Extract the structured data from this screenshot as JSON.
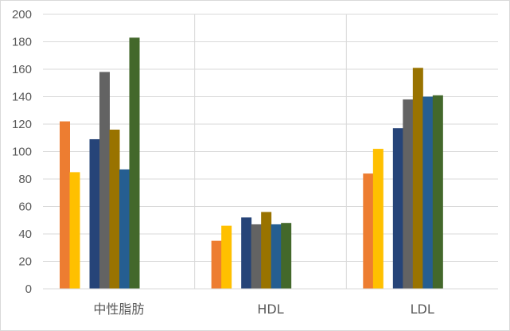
{
  "chart_data": {
    "type": "bar",
    "title": "",
    "xlabel": "",
    "ylabel": "",
    "ylim": [
      0,
      200
    ],
    "yticks": [
      0,
      20,
      40,
      60,
      80,
      100,
      120,
      140,
      160,
      180,
      200
    ],
    "grid": true,
    "legend": "none",
    "categories": [
      "中性脂肪",
      "HDL",
      "LDL"
    ],
    "series": [
      {
        "color": "#ED7D31",
        "values": [
          122,
          35,
          84
        ]
      },
      {
        "color": "#FFC000",
        "values": [
          85,
          46,
          102
        ]
      },
      {
        "color": "#264478",
        "values": [
          109,
          52,
          117
        ]
      },
      {
        "color": "#636363",
        "values": [
          158,
          47,
          138
        ]
      },
      {
        "color": "#997300",
        "values": [
          116,
          56,
          161
        ]
      },
      {
        "color": "#255E91",
        "values": [
          87,
          47,
          140
        ]
      },
      {
        "color": "#43682B",
        "values": [
          183,
          48,
          141
        ]
      }
    ]
  }
}
